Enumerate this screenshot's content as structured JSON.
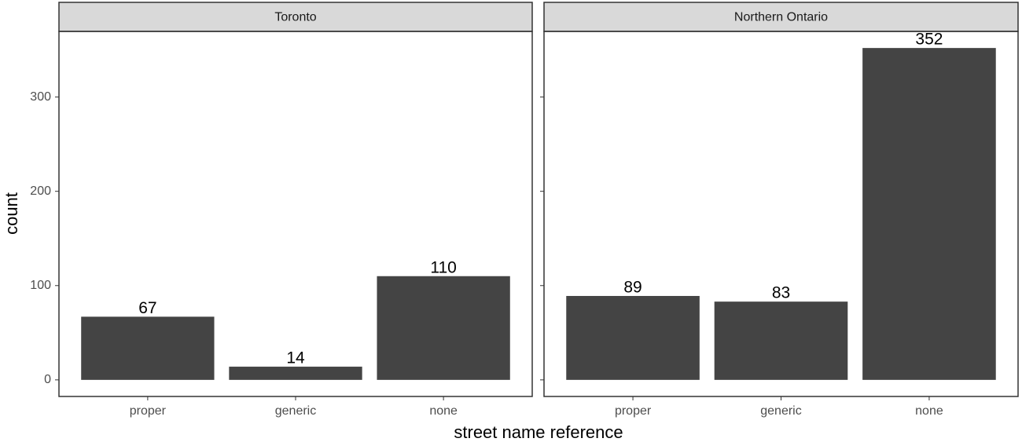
{
  "chart_data": [
    {
      "type": "bar",
      "title": "Toronto",
      "categories": [
        "proper",
        "generic",
        "none"
      ],
      "values": [
        67,
        14,
        110
      ],
      "color": "#444444",
      "ylim": [
        -17.6,
        369.6
      ],
      "yticks": [
        0,
        100,
        200,
        300
      ]
    },
    {
      "type": "bar",
      "title": "Northern Ontario",
      "categories": [
        "proper",
        "generic",
        "none"
      ],
      "values": [
        89,
        83,
        352
      ],
      "color": "#444444",
      "ylim": [
        -17.6,
        369.6
      ],
      "yticks": [
        0,
        100,
        200,
        300
      ]
    }
  ],
  "xlabel": "street name reference",
  "ylabel": "count"
}
